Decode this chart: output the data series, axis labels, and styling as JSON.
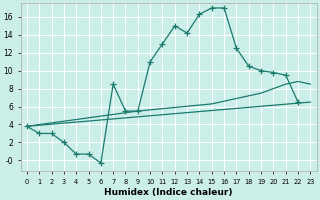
{
  "xlabel": "Humidex (Indice chaleur)",
  "bg_color": "#cceee8",
  "grid_color": "#ffffff",
  "line_color": "#1a7a6e",
  "xlim": [
    -0.5,
    23.5
  ],
  "ylim": [
    -1.2,
    17.5
  ],
  "xticks": [
    0,
    1,
    2,
    3,
    4,
    5,
    6,
    7,
    8,
    9,
    10,
    11,
    12,
    13,
    14,
    15,
    16,
    17,
    18,
    19,
    20,
    21,
    22,
    23
  ],
  "yticks": [
    0,
    2,
    4,
    6,
    8,
    10,
    12,
    14,
    16
  ],
  "ytick_labels": [
    "0",
    "2",
    "4",
    "6",
    "8",
    "10",
    "12",
    "14",
    "16"
  ],
  "line1_x": [
    0,
    1,
    2,
    3,
    4,
    5,
    6,
    7,
    8,
    9,
    10,
    11,
    12,
    13,
    14,
    15,
    16,
    17,
    18,
    19,
    20,
    21,
    22
  ],
  "line1_y": [
    3.8,
    3.0,
    3.0,
    2.0,
    0.7,
    0.7,
    -0.3,
    8.5,
    5.5,
    5.5,
    11.0,
    13.0,
    15.0,
    14.2,
    16.3,
    17.0,
    17.0,
    12.5,
    10.5,
    10.0,
    9.8,
    9.5,
    6.5
  ],
  "line2_x": [
    0,
    23
  ],
  "line2_y": [
    3.8,
    6.5
  ],
  "line3_x": [
    0,
    9,
    15,
    19,
    21,
    22,
    23
  ],
  "line3_y": [
    3.8,
    5.5,
    6.3,
    7.5,
    8.5,
    8.8,
    8.5
  ]
}
